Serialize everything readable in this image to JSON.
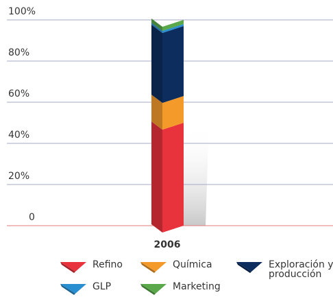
{
  "chart_data": {
    "type": "bar",
    "categories": [
      "2006"
    ],
    "series": [
      {
        "name": "Refino",
        "color": "#e8323c",
        "values": [
          50
        ]
      },
      {
        "name": "Química",
        "color": "#f39a2a",
        "values": [
          13
        ]
      },
      {
        "name": "Exploración y producción",
        "color": "#0c2d5e",
        "values": [
          34
        ]
      },
      {
        "name": "GLP",
        "color": "#2a8fd0",
        "values": [
          1
        ]
      },
      {
        "name": "Marketing",
        "color": "#5aa84a",
        "values": [
          2
        ]
      }
    ],
    "stacked": true,
    "ylim": [
      0,
      100
    ],
    "yticks": [
      0,
      {
        "value": 20,
        "label": "20%"
      },
      {
        "value": 40,
        "label": "40%"
      },
      {
        "value": 60,
        "label": "60%"
      },
      {
        "value": 80,
        "label": "80%"
      },
      {
        "value": 100,
        "label": "100%"
      }
    ],
    "grid": true
  }
}
